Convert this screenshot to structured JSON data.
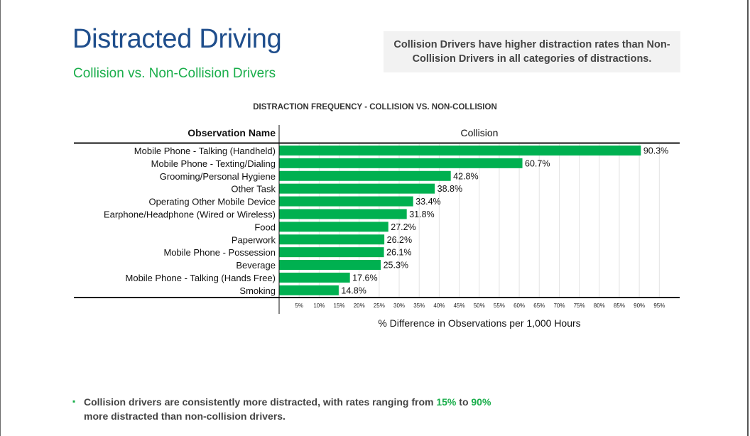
{
  "title": "Distracted Driving",
  "subtitle": "Collision vs. Non-Collision Drivers",
  "callout": "Collision Drivers have higher distraction rates than Non-Collision Drivers in all categories of distractions.",
  "footnote": {
    "part1": "Collision drivers are consistently more distracted, with rates ranging from ",
    "low": "15%",
    "middle": " to ",
    "high": "90%",
    "part2": "more distracted than non-collision drivers."
  },
  "colors": {
    "bar": "#00b050",
    "title": "#1f4e8c",
    "accent": "#1aae4b"
  },
  "chart_data": {
    "type": "bar",
    "orientation": "horizontal",
    "title": "DISTRACTION FREQUENCY - COLLISION VS. NON-COLLISION",
    "category_header": "Observation Name",
    "series_header": "Collision",
    "xlabel": "% Difference in Observations per 1,000 Hours",
    "xlim": [
      0,
      100
    ],
    "x_ticks": [
      "5%",
      "10%",
      "15%",
      "20%",
      "25%",
      "30%",
      "35%",
      "40%",
      "45%",
      "50%",
      "55%",
      "60%",
      "65%",
      "70%",
      "75%",
      "80%",
      "85%",
      "90%",
      "95%"
    ],
    "categories": [
      "Mobile Phone - Talking (Handheld)",
      "Mobile Phone - Texting/Dialing",
      "Grooming/Personal Hygiene",
      "Other Task",
      "Operating Other Mobile Device",
      "Earphone/Headphone (Wired or Wireless)",
      "Food",
      "Paperwork",
      "Mobile Phone - Possession",
      "Beverage",
      "Mobile Phone - Talking (Hands Free)",
      "Smoking"
    ],
    "values": [
      90.3,
      60.7,
      42.8,
      38.8,
      33.4,
      31.8,
      27.2,
      26.2,
      26.1,
      25.3,
      17.6,
      14.8
    ],
    "value_labels": [
      "90.3%",
      "60.7%",
      "42.8%",
      "38.8%",
      "33.4%",
      "31.8%",
      "27.2%",
      "26.2%",
      "26.1%",
      "25.3%",
      "17.6%",
      "14.8%"
    ],
    "grid": true
  }
}
